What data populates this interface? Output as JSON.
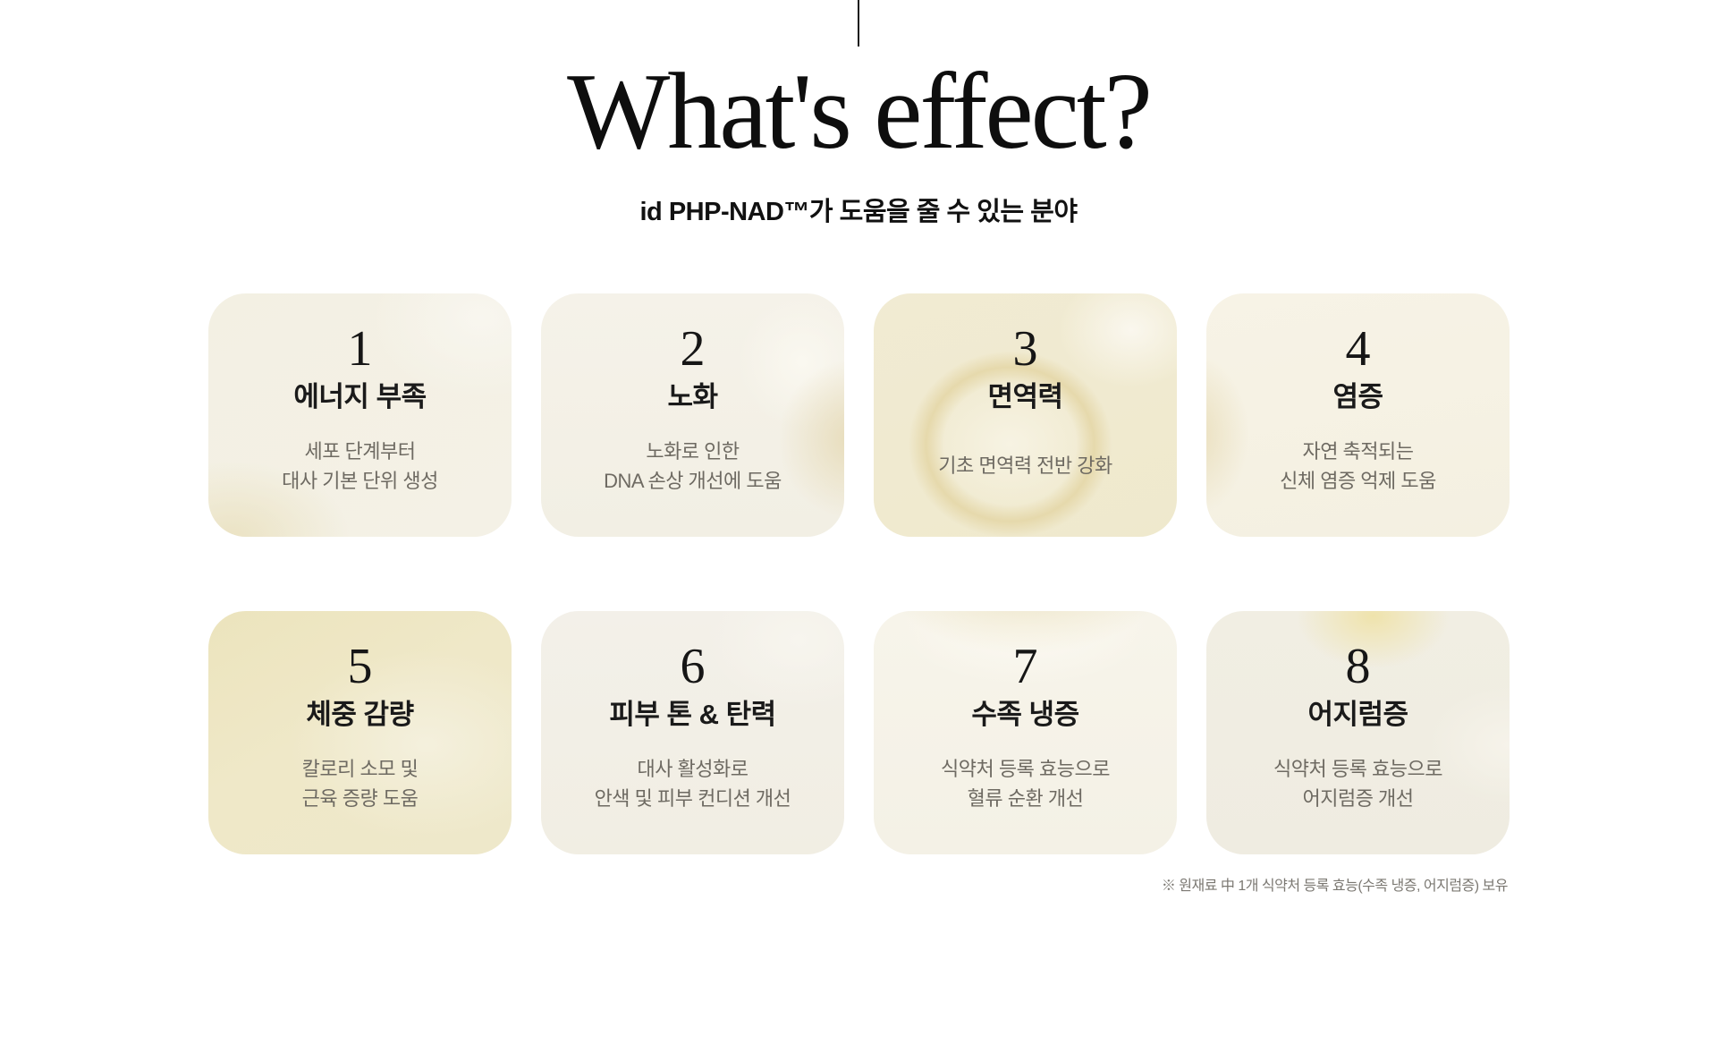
{
  "page": {
    "title": "What's effect?",
    "subtitle": "id PHP-NAD™가 도움을 줄 수 있는 분야",
    "footnote": "※ 원재료 中 1개 식약처 등록 효능(수족 냉증, 어지럼증) 보유"
  },
  "cards": [
    {
      "number": "1",
      "title": "에너지 부족",
      "desc_line1": "세포 단계부터",
      "desc_line2": "대사 기본 단위 생성"
    },
    {
      "number": "2",
      "title": "노화",
      "desc_line1": "노화로 인한",
      "desc_line2": "DNA 손상 개선에 도움"
    },
    {
      "number": "3",
      "title": "면역력",
      "desc_line1": "기초 면역력 전반 강화",
      "desc_line2": ""
    },
    {
      "number": "4",
      "title": "염증",
      "desc_line1": "자연 축적되는",
      "desc_line2": "신체 염증 억제 도움"
    },
    {
      "number": "5",
      "title": "체중 감량",
      "desc_line1": "칼로리 소모 및",
      "desc_line2": "근육 증량 도움"
    },
    {
      "number": "6",
      "title": "피부 톤 & 탄력",
      "desc_line1": "대사 활성화로",
      "desc_line2": "안색 및 피부 컨디션 개선"
    },
    {
      "number": "7",
      "title": "수족 냉증",
      "desc_line1": "식약처 등록 효능으로",
      "desc_line2": "혈류 순환 개선"
    },
    {
      "number": "8",
      "title": "어지럼증",
      "desc_line1": "식약처 등록 효능으로",
      "desc_line2": "어지럼증 개선"
    }
  ],
  "colors": {
    "background": "#ffffff",
    "title_text": "#0e0e0e",
    "card_title_text": "#1a1a1a",
    "card_description_text": "#6e6a62",
    "footnote_text": "#7b7872",
    "card_base_cream": "#f4f1e6",
    "card_gold": "#efe8c8",
    "divider": "#1a1a1a"
  }
}
